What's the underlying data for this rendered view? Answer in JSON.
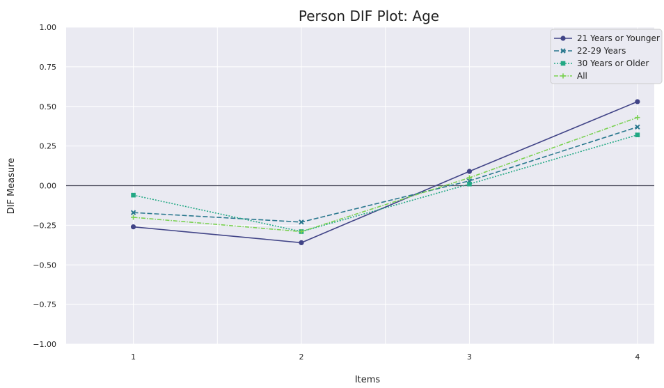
{
  "chart_data": {
    "type": "line",
    "title": "Person DIF Plot: Age",
    "xlabel": "Items",
    "ylabel": "DIF Measure",
    "x": [
      1,
      2,
      3,
      4
    ],
    "xlim": [
      0.6,
      4.1
    ],
    "ylim": [
      -1.0,
      1.0
    ],
    "yticks": [
      -1.0,
      -0.75,
      -0.5,
      -0.25,
      0.0,
      0.25,
      0.5,
      0.75,
      1.0
    ],
    "ytick_labels": [
      "−1.00",
      "−0.75",
      "−0.50",
      "−0.25",
      "0.00",
      "0.25",
      "0.50",
      "0.75",
      "1.00"
    ],
    "xtick_labels": [
      "1",
      "2",
      "3",
      "4"
    ],
    "grid": true,
    "background": "#eaeaf2",
    "reference_line": {
      "y": 0.0,
      "color": "#4a4a5a"
    },
    "legend_position": "top-right",
    "series": [
      {
        "name": "21 Years or Younger",
        "values": [
          -0.26,
          -0.36,
          0.09,
          0.53
        ],
        "color": "#414487",
        "marker": "circle",
        "dash": "solid"
      },
      {
        "name": "22-29 Years",
        "values": [
          -0.17,
          -0.23,
          0.03,
          0.37
        ],
        "color": "#2a788e",
        "marker": "x",
        "dash": "dashed"
      },
      {
        "name": "30 Years or Older",
        "values": [
          -0.06,
          -0.29,
          0.01,
          0.32
        ],
        "color": "#22a884",
        "marker": "square",
        "dash": "dotted"
      },
      {
        "name": "All",
        "values": [
          -0.2,
          -0.29,
          0.05,
          0.43
        ],
        "color": "#7ad151",
        "marker": "plus",
        "dash": "dashdot"
      }
    ]
  }
}
